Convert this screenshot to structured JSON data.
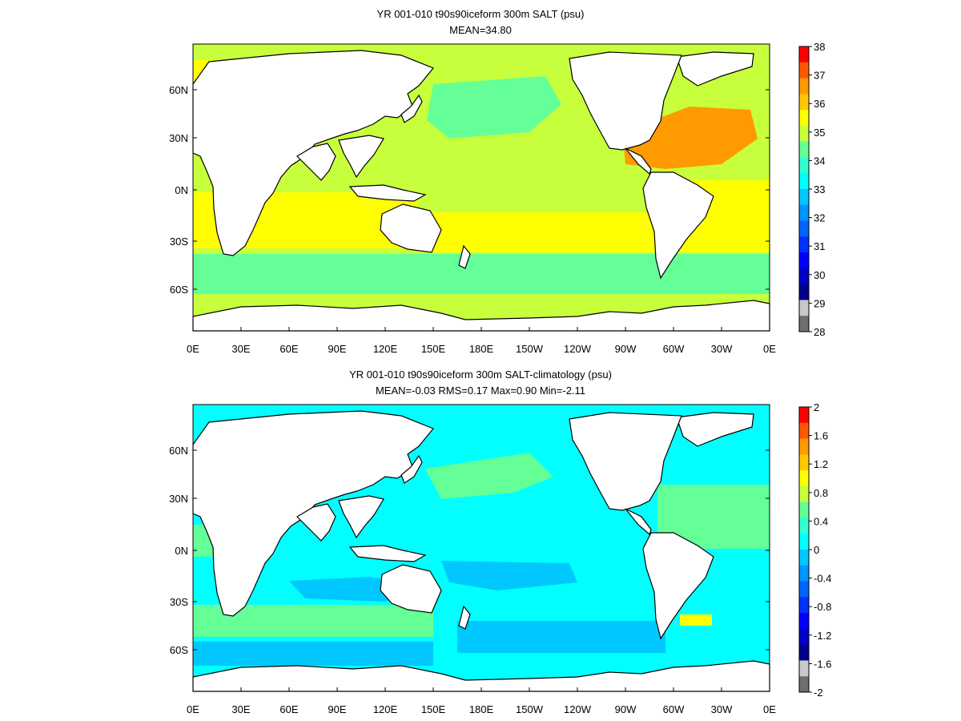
{
  "panels": [
    {
      "id": "top",
      "title_line1": "YR 001-010 t90s90iceform 300m SALT (psu)",
      "title_line2": "MEAN=34.80",
      "lat_labels": [
        "60N",
        "30N",
        "0N",
        "30S",
        "60S"
      ],
      "lon_labels": [
        "0E",
        "30E",
        "60E",
        "90E",
        "120E",
        "150E",
        "180E",
        "150W",
        "120W",
        "90W",
        "60W",
        "30W",
        "0E"
      ],
      "colorbar": {
        "labels": [
          "38",
          "37",
          "36",
          "35",
          "34",
          "33",
          "32",
          "31",
          "30",
          "29",
          "28"
        ],
        "colors": [
          "#ff0000",
          "#ff5a00",
          "#ff9a00",
          "#ffc800",
          "#ffff00",
          "#c8ff3c",
          "#64ff96",
          "#32ffd2",
          "#00ffff",
          "#00c8ff",
          "#0096ff",
          "#0064ff",
          "#0032ff",
          "#0000ff",
          "#0000c8",
          "#00008c",
          "#c8c8c8",
          "#6e6e6e"
        ]
      }
    },
    {
      "id": "bottom",
      "title_line1": "YR 001-010 t90s90iceform 300m SALT-climatology (psu)",
      "title_line2": "MEAN=-0.03   RMS=0.17   Max=0.90   Min=-2.11",
      "lat_labels": [
        "60N",
        "30N",
        "0N",
        "30S",
        "60S"
      ],
      "lon_labels": [
        "0E",
        "30E",
        "60E",
        "90E",
        "120E",
        "150E",
        "180E",
        "150W",
        "120W",
        "90W",
        "60W",
        "30W",
        "0E"
      ],
      "colorbar": {
        "labels": [
          "2",
          "1.6",
          "1.2",
          "0.8",
          "0.4",
          "0",
          "-0.4",
          "-0.8",
          "-1.2",
          "-1.6",
          "-2"
        ],
        "colors": [
          "#ff0000",
          "#ff5a00",
          "#ff9a00",
          "#ffc800",
          "#ffff00",
          "#c8ff3c",
          "#64ff96",
          "#32ffd2",
          "#00ffff",
          "#00c8ff",
          "#0096ff",
          "#0064ff",
          "#0032ff",
          "#0000ff",
          "#0000c8",
          "#00008c",
          "#c8c8c8",
          "#6e6e6e"
        ]
      }
    }
  ],
  "colors": {
    "land": "#ffffff",
    "coast": "#000000",
    "top_base": "#c8ff3c",
    "top_yellow": "#ffff00",
    "top_orange": "#ff9a00",
    "top_green": "#64ff96",
    "bot_base": "#00ffff",
    "bot_green": "#64ff96",
    "bot_blue": "#00c8ff",
    "bot_yellow": "#ffff00"
  }
}
